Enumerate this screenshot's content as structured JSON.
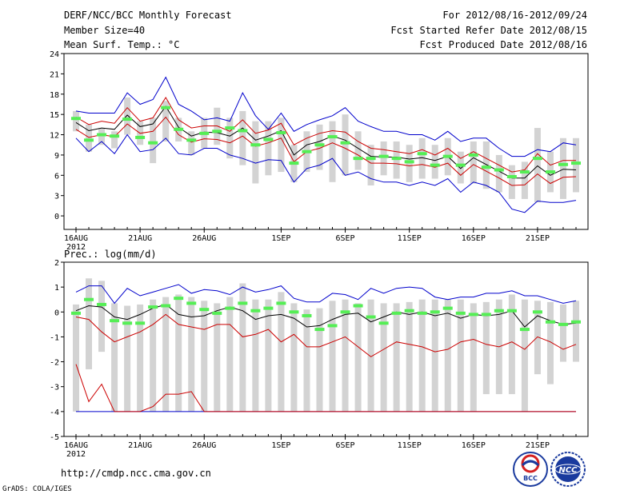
{
  "header": {
    "title_left": "DERF/NCC/BCC Monthly Forecast",
    "member_size": "Member Size=40",
    "var_label": "Mean Surf. Temp.: °C",
    "title_right": "For 2012/08/16-2012/09/24",
    "started": "Fcst Started Refer Date 2012/08/15",
    "produced": "Fcst Produced Date 2012/08/16"
  },
  "footer": {
    "url": "http://cmdp.ncc.cma.gov.cn",
    "credit": "GrADS: COLA/IGES",
    "logo1_text": "BCC",
    "logo2_text": "NCC"
  },
  "colors": {
    "max": "#0000cc",
    "min": "#0000cc",
    "p_upper": "#cc0000",
    "p_lower": "#cc0000",
    "mean": "#000000",
    "ctrl": "#55ee55",
    "box": "#d3d3d3"
  },
  "chart_data": [
    {
      "type": "line",
      "title": "Mean Surf. Temp.: °C",
      "days": 40,
      "x_tick_labels": [
        "16AUG",
        "21AUG",
        "26AUG",
        "1SEP",
        "6SEP",
        "11SEP",
        "16SEP",
        "21SEP"
      ],
      "x_tick_days": [
        0,
        5,
        10,
        16,
        21,
        26,
        31,
        36
      ],
      "x_year_label": "2012",
      "ylim": [
        -2,
        24
      ],
      "yticks": [
        0,
        3,
        6,
        9,
        12,
        15,
        18,
        21,
        24
      ],
      "series": [
        {
          "name": "max",
          "values": [
            15.5,
            15.2,
            15.2,
            15.2,
            18.2,
            16.5,
            17.2,
            20.5,
            16.5,
            15.5,
            14.2,
            14.5,
            14.0,
            18.2,
            14.8,
            12.8,
            15.2,
            12.5,
            13.5,
            14.2,
            14.8,
            16.0,
            14.0,
            13.2,
            12.5,
            12.5,
            12.0,
            12.0,
            11.2,
            12.5,
            11.0,
            11.5,
            11.5,
            10.0,
            8.8,
            8.8,
            9.8,
            9.5,
            10.8,
            10.5
          ]
        },
        {
          "name": "p_upper",
          "values": [
            14.6,
            13.5,
            14.0,
            13.7,
            16.0,
            14.0,
            14.5,
            17.5,
            14.2,
            13.0,
            13.3,
            13.3,
            12.5,
            14.2,
            12.2,
            12.7,
            13.7,
            10.5,
            11.5,
            12.2,
            12.6,
            12.4,
            11.0,
            10.0,
            9.8,
            9.5,
            9.2,
            9.8,
            9.0,
            10.0,
            8.5,
            9.5,
            8.5,
            7.5,
            6.5,
            6.8,
            9.2,
            7.5,
            8.2,
            8.2
          ]
        },
        {
          "name": "mean",
          "values": [
            13.8,
            12.6,
            13.0,
            12.8,
            14.9,
            13.2,
            13.6,
            16.2,
            13.1,
            11.8,
            12.4,
            12.3,
            11.8,
            13.0,
            11.2,
            11.8,
            12.6,
            9.0,
            10.5,
            11.0,
            11.8,
            11.2,
            10.0,
            8.8,
            8.7,
            8.7,
            8.4,
            8.6,
            8.2,
            8.8,
            7.0,
            8.6,
            7.6,
            6.6,
            5.6,
            5.6,
            7.4,
            6.0,
            6.9,
            6.8
          ]
        },
        {
          "name": "p_lower",
          "values": [
            12.8,
            11.6,
            12.0,
            11.7,
            13.6,
            12.2,
            12.5,
            14.6,
            12.0,
            10.9,
            11.4,
            11.3,
            10.8,
            11.8,
            10.3,
            10.8,
            11.5,
            8.0,
            9.5,
            10.0,
            10.8,
            10.0,
            9.0,
            7.8,
            7.8,
            7.7,
            7.4,
            7.6,
            7.2,
            7.8,
            6.0,
            7.6,
            6.6,
            5.6,
            4.5,
            4.6,
            6.2,
            4.8,
            5.7,
            5.8
          ]
        },
        {
          "name": "min",
          "values": [
            11.5,
            9.5,
            11.0,
            9.2,
            12.0,
            9.5,
            9.8,
            11.5,
            9.2,
            9.0,
            10.0,
            10.0,
            9.0,
            8.5,
            7.8,
            8.3,
            8.2,
            5.0,
            7.0,
            7.5,
            8.5,
            6.0,
            6.5,
            5.5,
            5.0,
            5.0,
            4.5,
            5.0,
            4.5,
            5.5,
            3.5,
            5.0,
            4.5,
            3.5,
            1.0,
            0.5,
            2.2,
            2.0,
            2.0,
            2.3
          ]
        },
        {
          "name": "ctrl",
          "values": [
            14.4,
            11.2,
            12.0,
            11.8,
            14.3,
            11.6,
            10.8,
            16.0,
            12.8,
            11.2,
            12.2,
            12.5,
            13.0,
            12.6,
            10.5,
            11.3,
            12.3,
            7.8,
            9.5,
            10.5,
            11.7,
            10.8,
            8.5,
            8.5,
            8.8,
            8.5,
            8.0,
            9.2,
            7.5,
            8.8,
            7.5,
            9.0,
            7.2,
            6.8,
            5.8,
            6.5,
            8.5,
            6.5,
            7.6,
            7.8
          ]
        },
        {
          "name": "box_low",
          "values": [
            12.5,
            9.5,
            10.5,
            10.0,
            12.0,
            10.5,
            7.8,
            11.0,
            11.0,
            9.0,
            10.0,
            10.5,
            8.5,
            7.5,
            4.8,
            6.0,
            6.5,
            5.0,
            6.5,
            6.8,
            5.0,
            6.0,
            6.8,
            4.5,
            6.0,
            5.5,
            5.0,
            5.5,
            5.5,
            6.0,
            4.8,
            4.8,
            4.0,
            3.5,
            2.5,
            2.5,
            2.0,
            3.5,
            2.5,
            3.5
          ]
        },
        {
          "name": "box_high",
          "values": [
            15.5,
            13.5,
            13.0,
            12.5,
            17.5,
            14.0,
            14.5,
            17.0,
            14.5,
            12.5,
            14.5,
            16.0,
            14.5,
            15.5,
            14.0,
            14.0,
            14.5,
            10.5,
            12.5,
            13.5,
            14.0,
            15.0,
            12.5,
            10.5,
            11.0,
            11.0,
            10.5,
            11.5,
            10.5,
            11.5,
            9.5,
            11.0,
            11.0,
            9.0,
            7.5,
            8.0,
            13.0,
            9.5,
            11.5,
            11.5
          ]
        }
      ]
    },
    {
      "type": "line",
      "title": "Prec.: log(mm/d)",
      "days": 40,
      "x_tick_labels": [
        "16AUG",
        "21AUG",
        "26AUG",
        "1SEP",
        "6SEP",
        "11SEP",
        "16SEP",
        "21SEP"
      ],
      "x_tick_days": [
        0,
        5,
        10,
        16,
        21,
        26,
        31,
        36
      ],
      "x_year_label": "2012",
      "ylim": [
        -5,
        2
      ],
      "yticks": [
        -5,
        -4,
        -3,
        -2,
        -1,
        0,
        1,
        2
      ],
      "series": [
        {
          "name": "max",
          "values": [
            0.8,
            1.05,
            1.05,
            0.35,
            0.95,
            0.65,
            0.8,
            0.95,
            1.1,
            0.75,
            0.9,
            0.85,
            0.7,
            1.0,
            0.8,
            0.9,
            1.05,
            0.55,
            0.4,
            0.4,
            0.75,
            0.7,
            0.5,
            0.95,
            0.75,
            0.95,
            1.0,
            0.95,
            0.6,
            0.5,
            0.6,
            0.6,
            0.75,
            0.75,
            0.85,
            0.65,
            0.65,
            0.5,
            0.35,
            0.45
          ]
        },
        {
          "name": "mean",
          "values": [
            0.05,
            0.25,
            0.2,
            -0.2,
            -0.3,
            -0.1,
            0.15,
            0.3,
            -0.1,
            -0.2,
            -0.15,
            0.05,
            0.2,
            0.05,
            -0.3,
            -0.15,
            -0.1,
            -0.25,
            -0.6,
            -0.55,
            -0.3,
            -0.1,
            -0.05,
            -0.4,
            -0.2,
            0.0,
            -0.1,
            0.0,
            -0.15,
            -0.05,
            -0.25,
            -0.1,
            -0.15,
            -0.1,
            0.05,
            -0.6,
            -0.15,
            -0.35,
            -0.5,
            -0.45
          ]
        },
        {
          "name": "p_upper",
          "values": [
            -0.2,
            -0.3,
            -0.8,
            -1.2,
            -1.0,
            -0.8,
            -0.5,
            -0.1,
            -0.5,
            -0.6,
            -0.7,
            -0.5,
            -0.5,
            -1.0,
            -0.9,
            -0.7,
            -1.2,
            -0.9,
            -1.4,
            -1.4,
            -1.2,
            -1.0,
            -1.4,
            -1.8,
            -1.5,
            -1.2,
            -1.3,
            -1.4,
            -1.6,
            -1.5,
            -1.2,
            -1.1,
            -1.3,
            -1.4,
            -1.2,
            -1.5,
            -1.0,
            -1.2,
            -1.5,
            -1.3
          ]
        },
        {
          "name": "p_lower",
          "values": [
            -2.1,
            -3.6,
            -2.9,
            -4.0,
            -4.0,
            -4.0,
            -3.8,
            -3.3,
            -3.3,
            -3.2,
            -4.0,
            -4.0,
            -4.0,
            -4.0,
            -4.0,
            -4.0,
            -4.0,
            -4.0,
            -4.0,
            -4.0,
            -4.0,
            -4.0,
            -4.0,
            -4.0,
            -4.0,
            -4.0,
            -4.0,
            -4.0,
            -4.0,
            -4.0,
            -4.0,
            -4.0,
            -4.0,
            -4.0,
            -4.0,
            -4.0,
            -4.0,
            -4.0,
            -4.0,
            -4.0
          ]
        },
        {
          "name": "min",
          "values": [
            -4.0,
            -4.0,
            -4.0,
            -4.0,
            -4.0,
            -4.0,
            -4.0,
            -4.0,
            -4.0,
            -4.0,
            -4.0,
            -4.0,
            -4.0,
            -4.0,
            -4.0,
            -4.0,
            -4.0,
            -4.0,
            -4.0,
            -4.0,
            -4.0,
            -4.0,
            -4.0,
            -4.0,
            -4.0,
            -4.0,
            -4.0,
            -4.0,
            -4.0,
            -4.0,
            -4.0,
            -4.0,
            -4.0,
            -4.0,
            -4.0,
            -4.0,
            -4.0,
            -4.0,
            -4.0,
            -4.0
          ]
        },
        {
          "name": "ctrl",
          "values": [
            -0.05,
            0.5,
            0.3,
            -0.35,
            -0.45,
            -0.45,
            0.2,
            0.25,
            0.55,
            0.35,
            0.1,
            -0.05,
            0.15,
            0.35,
            0.05,
            0.15,
            0.35,
            0.0,
            -0.15,
            -0.7,
            -0.55,
            0.0,
            0.25,
            -0.2,
            -0.45,
            -0.05,
            0.05,
            -0.05,
            0.0,
            0.15,
            -0.05,
            -0.1,
            -0.1,
            0.05,
            0.05,
            -0.7,
            0.0,
            -0.4,
            -0.5,
            -0.4
          ]
        },
        {
          "name": "box_low",
          "values": [
            -4.0,
            -2.3,
            -1.6,
            -4.0,
            -4.0,
            -4.0,
            -4.0,
            -4.0,
            -4.0,
            -4.0,
            -4.0,
            -4.0,
            -4.0,
            -4.0,
            -4.0,
            -4.0,
            -4.0,
            -4.0,
            -4.0,
            -4.0,
            -4.0,
            -4.0,
            -4.0,
            -4.0,
            -4.0,
            -4.0,
            -4.0,
            -4.0,
            -4.0,
            -4.0,
            -4.0,
            -4.0,
            -3.3,
            -3.3,
            -3.3,
            -4.0,
            -2.5,
            -2.9,
            -2.0,
            -2.0
          ]
        },
        {
          "name": "box_high",
          "values": [
            0.3,
            1.35,
            1.25,
            0.35,
            0.25,
            0.3,
            0.5,
            0.6,
            0.7,
            0.6,
            0.45,
            0.35,
            0.6,
            1.15,
            0.5,
            0.5,
            0.8,
            0.35,
            0.1,
            0.15,
            0.45,
            0.5,
            0.35,
            0.5,
            0.35,
            0.35,
            0.4,
            0.5,
            0.5,
            0.5,
            0.5,
            0.35,
            0.4,
            0.5,
            0.7,
            0.5,
            0.45,
            0.4,
            0.3,
            0.45
          ]
        }
      ]
    }
  ]
}
